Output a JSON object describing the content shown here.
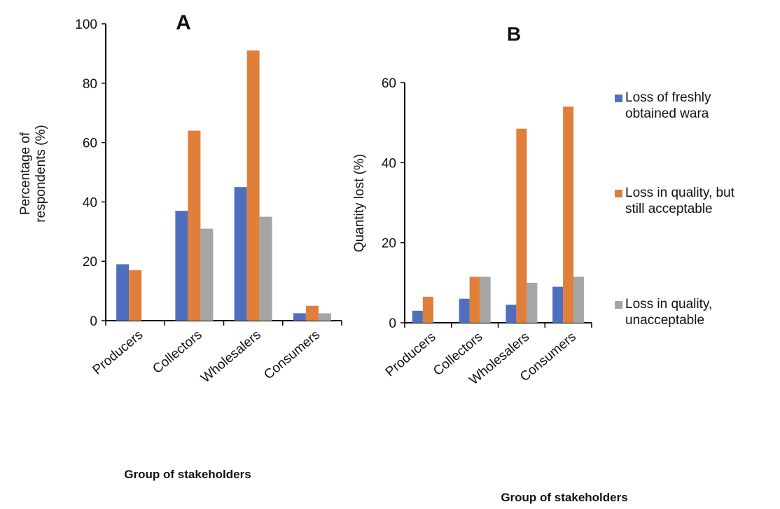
{
  "chart_data": [
    {
      "type": "bar",
      "title": "A",
      "ylabel": "Percentage of respondents (%)",
      "xlabel": "Group of stakeholders",
      "categories": [
        "Producers",
        "Collectors",
        "Wholesalers",
        "Consumers"
      ],
      "ylim": [
        0,
        100
      ],
      "yticks": [
        0,
        20,
        40,
        60,
        80,
        100
      ],
      "series": [
        {
          "name": "Loss of freshly obtained wara",
          "color": "#4f6fbe",
          "values": [
            19,
            37,
            45,
            2.5
          ]
        },
        {
          "name": "Loss in quality, but still acceptable",
          "color": "#e07f3a",
          "values": [
            17,
            64,
            91,
            5
          ]
        },
        {
          "name": "Loss in quality, unacceptable",
          "color": "#a5a5a5",
          "values": [
            0,
            31,
            35,
            2.5
          ]
        }
      ],
      "grid": false
    },
    {
      "type": "bar",
      "title": "B",
      "ylabel": "Quantity lost (%)",
      "xlabel": "Group of stakeholders",
      "categories": [
        "Producers",
        "Collectors",
        "Wholesalers",
        "Consumers"
      ],
      "ylim": [
        0,
        60
      ],
      "yticks": [
        0,
        20,
        40,
        60
      ],
      "series": [
        {
          "name": "Loss of freshly obtained wara",
          "color": "#4f6fbe",
          "values": [
            3,
            6,
            4.5,
            9
          ]
        },
        {
          "name": "Loss in quality, but still acceptable",
          "color": "#e07f3a",
          "values": [
            6.5,
            11.5,
            48.5,
            54
          ]
        },
        {
          "name": "Loss in quality, unacceptable",
          "color": "#a5a5a5",
          "values": [
            0,
            11.5,
            10,
            11.5
          ]
        }
      ],
      "grid": false
    }
  ],
  "legend": {
    "placement": "right",
    "items": [
      {
        "label": "Loss of freshly\nobtained wara",
        "color": "#4f6fbe"
      },
      {
        "label": "Loss in quality, but\nstill acceptable",
        "color": "#e07f3a"
      },
      {
        "label": "Loss in quality,\nunacceptable",
        "color": "#a5a5a5"
      }
    ]
  }
}
